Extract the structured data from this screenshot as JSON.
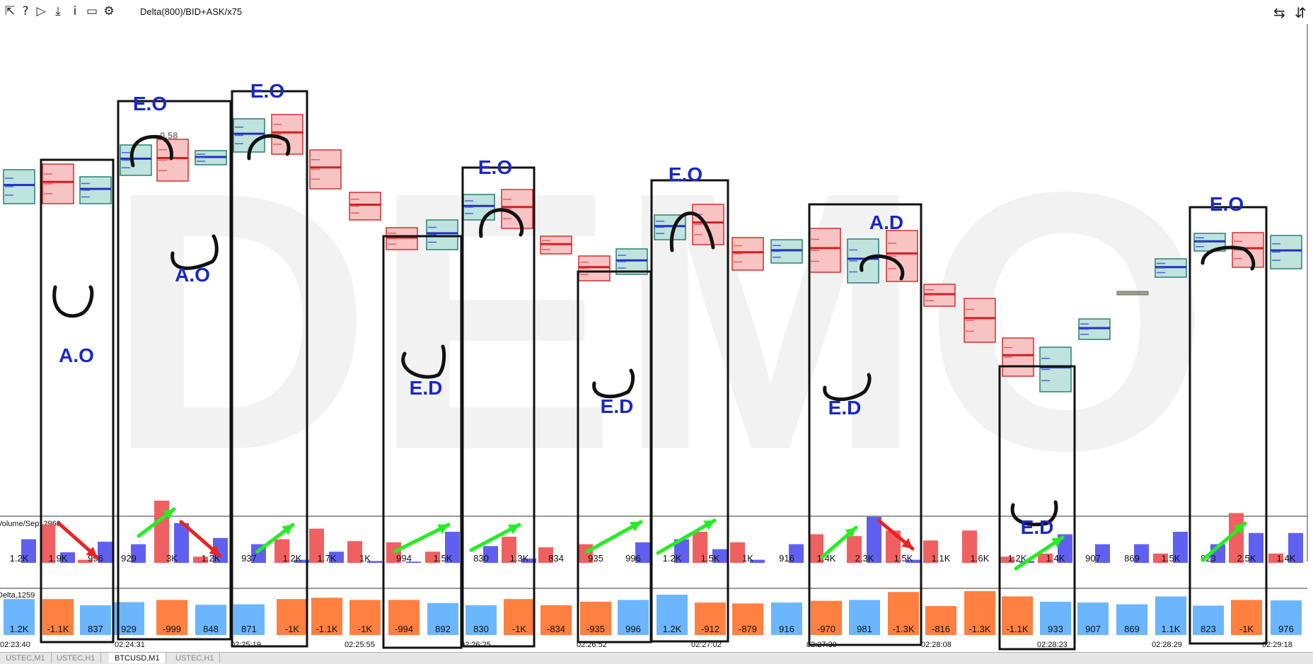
{
  "toolbar": {
    "icons": [
      "cursor-icon",
      "help-icon",
      "play-icon",
      "download-icon",
      "info-icon",
      "chart-icon",
      "gear-icon"
    ],
    "indicator_label": "Delta(800)/BID+ASK/x75",
    "right_icons": [
      "swap-icon",
      "scale-icon"
    ]
  },
  "colors": {
    "bull_fill": "#bfe3dd",
    "bull_stroke": "#2a7f74",
    "bear_fill": "#f7c3c3",
    "bear_stroke": "#d03030",
    "vol_red": "#f06060",
    "vol_blue": "#6060f0",
    "delta_pos": "#6cb6ff",
    "delta_neg": "#ff8040",
    "annot_text": "#1a28c8",
    "arrow_green": "#22ee22",
    "arrow_red": "#ee2222"
  },
  "watermark": "DEMO",
  "price_label_top": "0.58",
  "volume_panel_label": "Volume/Sep.,2960",
  "delta_panel_label": "Delta,1259",
  "volume_values": [
    "1.2K",
    "1.9K",
    "996",
    "929",
    "3K",
    "1.2K",
    "937",
    "1.2K",
    "1.7K",
    "1K",
    "994",
    "1.5K",
    "830",
    "1.3K",
    "834",
    "935",
    "996",
    "1.2K",
    "1.5K",
    "1K",
    "916",
    "1.4K",
    "2.3K",
    "1.5K",
    "1.1K",
    "1.6K",
    "1.2K",
    "1.4K",
    "907",
    "869",
    "1.5K",
    "823",
    "2.5K",
    "1.4K"
  ],
  "vol_red": [
    0,
    0.62,
    0.05,
    0,
    1.0,
    0.1,
    0,
    0.38,
    0.55,
    0.35,
    0.33,
    0.18,
    0,
    0.42,
    0.25,
    0.3,
    0,
    0,
    0.5,
    0.33,
    0,
    0.46,
    0.43,
    0.52,
    0.36,
    0.52,
    0.1,
    0.15,
    0,
    0,
    0.15,
    0,
    0.8,
    0.15
  ],
  "vol_blue": [
    0.38,
    0.17,
    0.34,
    0.3,
    0.64,
    0.4,
    0.3,
    0.05,
    0.18,
    0.03,
    0.02,
    0.5,
    0.27,
    0.07,
    0,
    0,
    0.33,
    0.38,
    0.22,
    0.05,
    0.3,
    0,
    0.74,
    0.05,
    0,
    0,
    0.03,
    0.46,
    0.3,
    0.3,
    0.5,
    0.3,
    0.48,
    0.48
  ],
  "delta_values": [
    "1.2K",
    "-1.1K",
    "837",
    "929",
    "-999",
    "848",
    "871",
    "-1K",
    "-1.1K",
    "-1K",
    "-994",
    "892",
    "830",
    "-1K",
    "-834",
    "-935",
    "996",
    "1.2K",
    "-912",
    "-879",
    "916",
    "-970",
    "981",
    "-1.3K",
    "-816",
    "-1.3K",
    "-1.1K",
    "933",
    "907",
    "869",
    "1.1K",
    "823",
    "-1K",
    "976"
  ],
  "delta_mag": [
    0.82,
    0.82,
    0.68,
    0.75,
    0.8,
    0.69,
    0.7,
    0.82,
    0.85,
    0.8,
    0.8,
    0.73,
    0.68,
    0.82,
    0.68,
    0.76,
    0.8,
    0.92,
    0.74,
    0.72,
    0.74,
    0.78,
    0.8,
    0.98,
    0.66,
    1.0,
    0.88,
    0.76,
    0.74,
    0.7,
    0.88,
    0.67,
    0.8,
    0.79
  ],
  "time_labels": [
    "02:23:40",
    "02:24:31",
    "02:25:19",
    "02:25:55",
    "02:26:25",
    "02:26:52",
    "02:27:02",
    "02:27:30",
    "02:28:08",
    "02:28:23",
    "02:28:29",
    "02:29:18"
  ],
  "annotations": [
    "E.O",
    "E.O",
    "E.O",
    "E.O",
    "E.O",
    "A.O",
    "A.O",
    "E.D",
    "E.D",
    "E.D",
    "E.D",
    "A.D"
  ],
  "tabs": [
    "USTEC,M1",
    "USTEC,H1",
    "BTCUSD,M1",
    "USTEC,H1"
  ],
  "active_tab": 2
}
